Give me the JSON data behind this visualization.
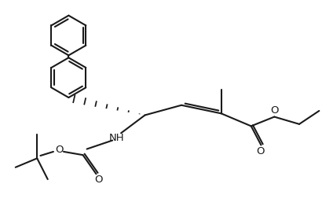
{
  "bg_color": "#ffffff",
  "line_color": "#1a1a1a",
  "line_width": 1.5,
  "font_size": 9.5,
  "fig_width": 4.24,
  "fig_height": 2.76,
  "dpi": 100,
  "xlim": [
    0,
    10
  ],
  "ylim": [
    0,
    6.5
  ],
  "r1x": 2.05,
  "r1y": 5.45,
  "r2x": 2.05,
  "r2y": 4.18,
  "ring_r": 0.6,
  "c4x": 4.35,
  "c4y": 3.05,
  "c3x": 5.45,
  "c3y": 3.35,
  "c2x": 6.65,
  "c2y": 3.1,
  "c1x": 7.55,
  "c1y": 2.72,
  "co_x": 7.85,
  "co_y": 2.15,
  "eo_x": 8.25,
  "eo_y": 3.0,
  "et1x": 9.0,
  "et1y": 2.78,
  "et2x": 9.6,
  "et2y": 3.18,
  "me_x": 6.65,
  "me_y": 3.82,
  "nh_x": 3.38,
  "nh_y": 2.38,
  "bocc_x": 2.48,
  "bocc_y": 1.85,
  "boco_keto_x": 2.88,
  "boco_keto_y": 1.28,
  "boco_x": 1.72,
  "boco_y": 1.95,
  "tbu_x": 1.1,
  "tbu_y": 1.75,
  "tbu_m1x": 1.1,
  "tbu_m1y": 2.48,
  "tbu_m2x": 0.45,
  "tbu_m2y": 1.48,
  "tbu_m3x": 1.42,
  "tbu_m3y": 1.12
}
